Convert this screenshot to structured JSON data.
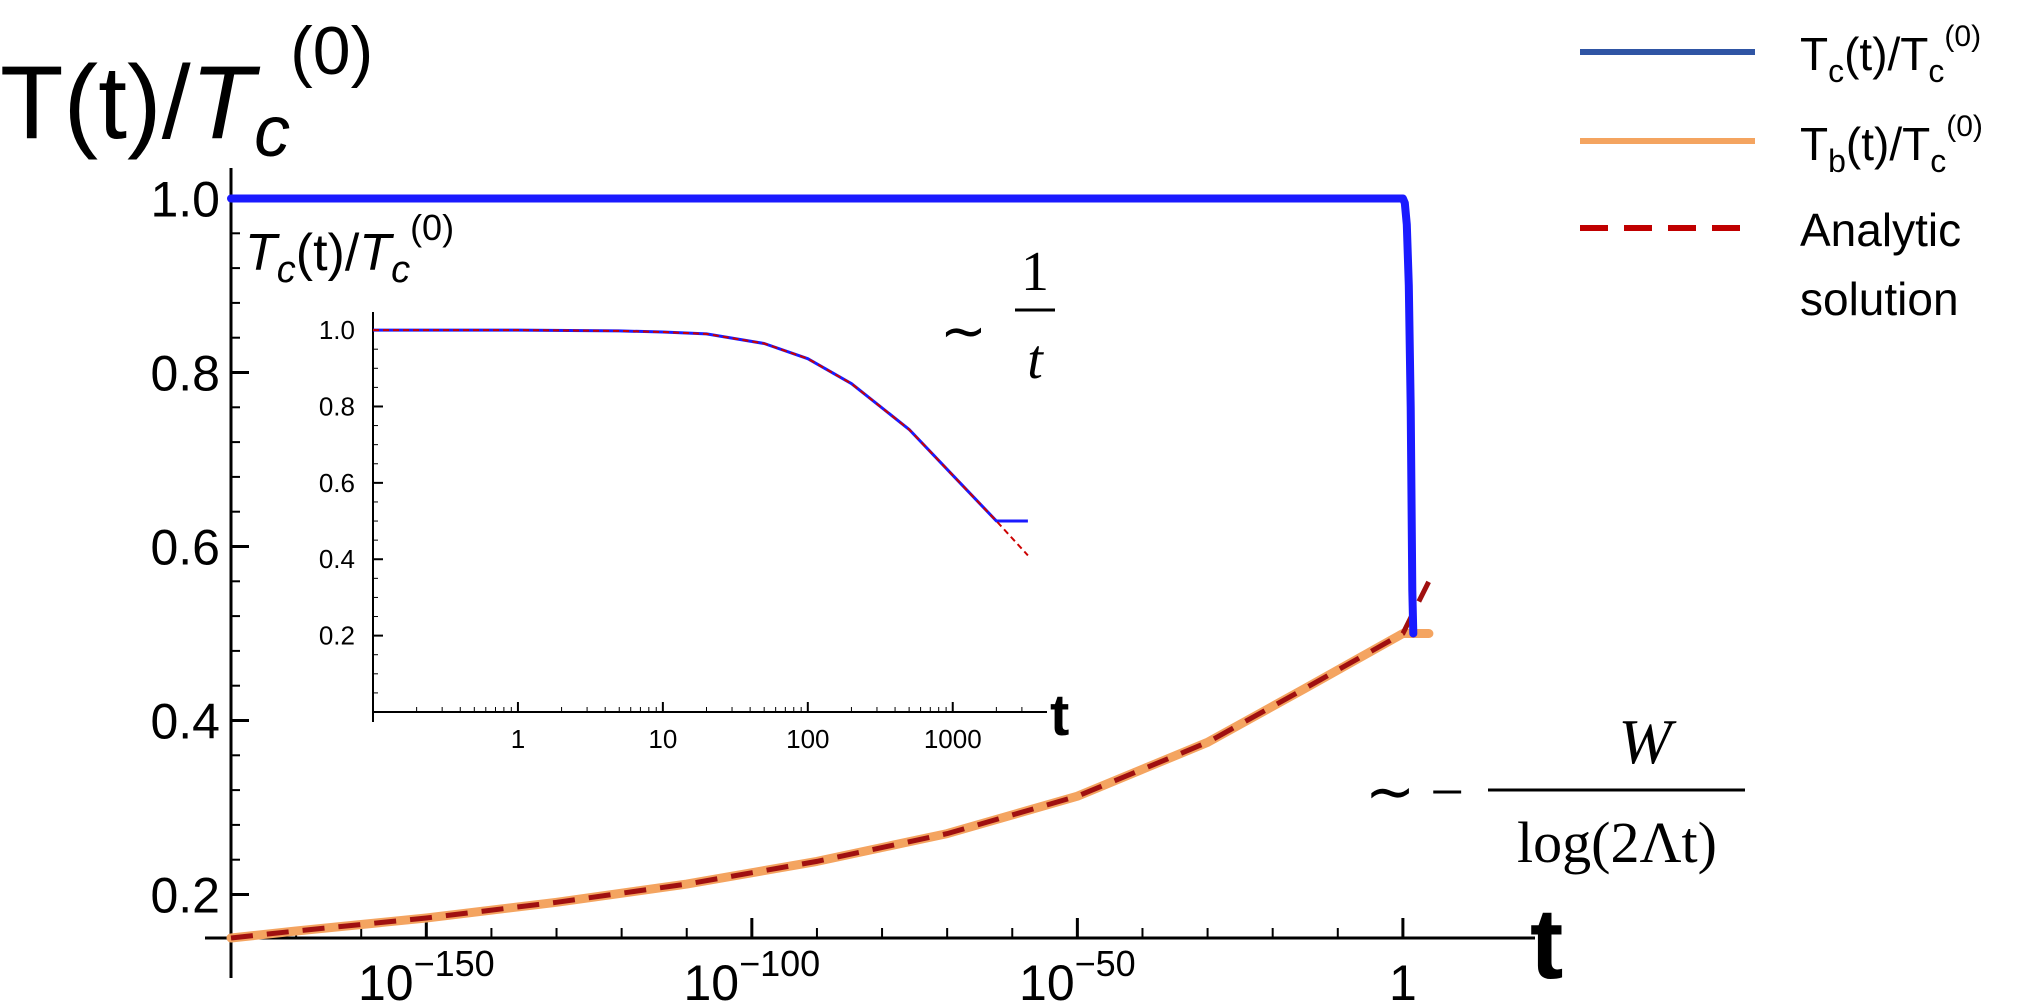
{
  "chart_data": [
    {
      "type": "line",
      "title": "T(t)/T_c^(0)",
      "title_parts": {
        "base": "T(t)/",
        "italic": "T",
        "sub": "c",
        "sup": "(0)"
      },
      "xlabel": "t",
      "x_scale": "log10",
      "xlim": [
        1e-180,
        10000000000.0
      ],
      "ylim": [
        0.15,
        1.05
      ],
      "x_ticks": [
        {
          "exp": -150,
          "label_base": "10",
          "label_exp": "−150"
        },
        {
          "exp": -100,
          "label_base": "10",
          "label_exp": "−100"
        },
        {
          "exp": -50,
          "label_base": "10",
          "label_exp": "−50"
        },
        {
          "exp": 0,
          "label_base": "1",
          "label_exp": ""
        }
      ],
      "y_ticks": [
        0.2,
        0.4,
        0.6,
        0.8,
        1.0
      ],
      "y_tick_labels": [
        "0.2",
        "0.4",
        "0.6",
        "0.8",
        "1.0"
      ],
      "grid": false,
      "series": [
        {
          "name": "Tc(t)/Tc(0)",
          "color": "#1a1aff",
          "x_exp": [
            -180,
            -40,
            0,
            0.3,
            0.6,
            0.9,
            1.2,
            1.45,
            1.6
          ],
          "y": [
            1.0,
            1.0,
            1.0,
            0.995,
            0.97,
            0.9,
            0.76,
            0.55,
            0.5
          ]
        },
        {
          "name": "Tb(t)/Tc(0)",
          "color": "#f4a460",
          "x_exp": [
            -180,
            -170,
            -150,
            -130,
            -110,
            -90,
            -70,
            -50,
            -30,
            -15,
            0,
            1.6,
            4
          ],
          "y": [
            0.15,
            0.158,
            0.173,
            0.191,
            0.212,
            0.238,
            0.27,
            0.313,
            0.375,
            0.437,
            0.5,
            0.5,
            0.5
          ]
        },
        {
          "name": "Analytic solution",
          "color": "#a01010",
          "dashed": true,
          "x_exp": [
            -180,
            -170,
            -150,
            -130,
            -110,
            -90,
            -70,
            -50,
            -30,
            -15,
            0,
            2,
            4
          ],
          "y": [
            0.15,
            0.158,
            0.173,
            0.191,
            0.212,
            0.238,
            0.27,
            0.313,
            0.375,
            0.437,
            0.5,
            0.53,
            0.56
          ]
        }
      ],
      "annotation": "∼ −W / log(2Λt)",
      "annotation_parts": {
        "num": "W",
        "den": "log(2Λt)"
      }
    },
    {
      "type": "line",
      "title": "Tc(t)/Tc(0)",
      "title_parts": {
        "italic": "T",
        "sub": "c",
        "mid": "(t)/",
        "sup": "(0)"
      },
      "xlabel": "t",
      "x_scale": "log10",
      "xlim": [
        0.1,
        4000
      ],
      "ylim": [
        0.0,
        1.05
      ],
      "x_ticks": [
        1,
        10,
        100,
        1000
      ],
      "x_tick_labels": [
        "1",
        "10",
        "100",
        "1000"
      ],
      "y_ticks": [
        0.2,
        0.4,
        0.6,
        0.8,
        1.0
      ],
      "y_tick_labels": [
        "0.2",
        "0.4",
        "0.6",
        "0.8",
        "1.0"
      ],
      "grid": false,
      "series": [
        {
          "name": "Tc(t)/Tc(0)",
          "color": "#1a1aff",
          "x": [
            0.1,
            1,
            5,
            10,
            20,
            50,
            100,
            200,
            500,
            1000,
            2000,
            2000,
            3300
          ],
          "y": [
            1.0,
            1.0,
            0.998,
            0.995,
            0.99,
            0.965,
            0.925,
            0.86,
            0.74,
            0.62,
            0.5,
            0.5,
            0.5
          ]
        },
        {
          "name": "Analytic solution",
          "color": "#cc0000",
          "dashed": true,
          "x": [
            0.1,
            1,
            5,
            10,
            20,
            50,
            100,
            200,
            500,
            1000,
            2000,
            3300
          ],
          "y": [
            1.0,
            1.0,
            0.998,
            0.995,
            0.99,
            0.965,
            0.925,
            0.86,
            0.74,
            0.62,
            0.5,
            0.41
          ]
        }
      ],
      "annotation": "∼ 1/t",
      "annotation_parts": {
        "num": "1",
        "den": "t"
      }
    }
  ],
  "legend": {
    "placement": "top-right",
    "items": [
      {
        "base": "T",
        "sub": "c",
        "mid": "(t)/T",
        "sub2": "c",
        "sup": "(0)",
        "color": "#2f55a4",
        "dashed": false
      },
      {
        "base": "T",
        "sub": "b",
        "mid": "(t)/T",
        "sub2": "c",
        "sup": "(0)",
        "color": "#f4a460",
        "dashed": false
      },
      {
        "line1": "Analytic",
        "line2": "solution",
        "color": "#c00000",
        "dashed": true
      }
    ]
  }
}
